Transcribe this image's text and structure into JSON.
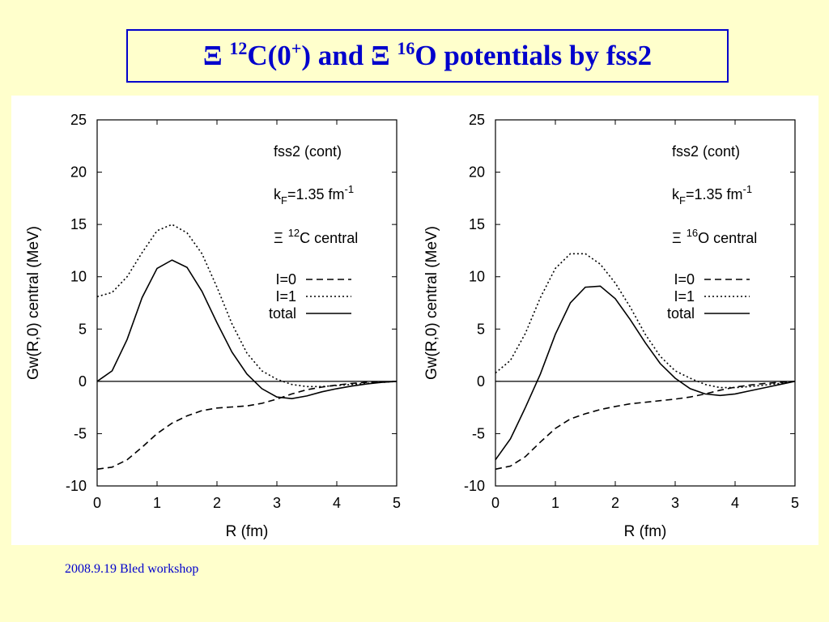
{
  "slide": {
    "title": {
      "xi1": "Ξ",
      "sup1": "12",
      "part1": "C(0",
      "sup2": "+",
      "part2": ") and Ξ",
      "sup3": "16",
      "part3": "O potentials by fss2"
    },
    "footer": "2008.9.19 Bled workshop"
  },
  "colors": {
    "background": "#ffffcc",
    "title": "#0000cc",
    "plot_background": "#ffffff",
    "ink": "#000000"
  },
  "chart_data": [
    {
      "type": "line",
      "xlabel": "R (fm)",
      "ylabel": "Gw(R,0) central (MeV)",
      "xlim": [
        0,
        5
      ],
      "ylim": [
        -10,
        25
      ],
      "xticks": [
        0,
        1,
        2,
        3,
        4,
        5
      ],
      "yticks": [
        -10,
        -5,
        0,
        5,
        10,
        15,
        20,
        25
      ],
      "grid": false,
      "annotations": {
        "model": "fss2 (cont)",
        "kf_k": "k",
        "kf_sub": "F",
        "kf_val": "=1.35 fm",
        "kf_sup": "-1",
        "sys_xi": "Ξ",
        "sys_sup": "12",
        "sys_rest": "C  central"
      },
      "legend_position": "right",
      "series": [
        {
          "name": "I=0",
          "style": "dashed",
          "x": [
            0,
            0.25,
            0.5,
            0.75,
            1.0,
            1.25,
            1.5,
            1.75,
            2.0,
            2.25,
            2.5,
            2.75,
            3.0,
            3.25,
            3.5,
            3.75,
            4.0,
            4.25,
            4.5,
            4.75,
            5.0
          ],
          "y": [
            -8.4,
            -8.2,
            -7.5,
            -6.3,
            -5.0,
            -4.0,
            -3.3,
            -2.8,
            -2.55,
            -2.45,
            -2.35,
            -2.1,
            -1.7,
            -1.2,
            -0.8,
            -0.55,
            -0.35,
            -0.2,
            -0.1,
            -0.05,
            0.0
          ]
        },
        {
          "name": "I=1",
          "style": "dotted",
          "x": [
            0,
            0.25,
            0.5,
            0.75,
            1.0,
            1.25,
            1.5,
            1.75,
            2.0,
            2.25,
            2.5,
            2.75,
            3.0,
            3.25,
            3.5,
            3.75,
            4.0,
            4.25,
            4.5,
            4.75,
            5.0
          ],
          "y": [
            8.1,
            8.5,
            10.0,
            12.3,
            14.4,
            15.0,
            14.2,
            12.2,
            9.0,
            5.5,
            2.7,
            1.0,
            0.2,
            -0.3,
            -0.5,
            -0.5,
            -0.4,
            -0.3,
            -0.2,
            -0.1,
            0.0
          ]
        },
        {
          "name": "total",
          "style": "solid",
          "x": [
            0,
            0.25,
            0.5,
            0.75,
            1.0,
            1.25,
            1.5,
            1.75,
            2.0,
            2.25,
            2.5,
            2.75,
            3.0,
            3.25,
            3.5,
            3.75,
            4.0,
            4.25,
            4.5,
            4.75,
            5.0
          ],
          "y": [
            0.0,
            1.0,
            4.0,
            8.0,
            10.8,
            11.6,
            10.9,
            8.6,
            5.6,
            2.8,
            0.7,
            -0.7,
            -1.5,
            -1.65,
            -1.4,
            -1.0,
            -0.7,
            -0.45,
            -0.25,
            -0.1,
            0.0
          ]
        }
      ]
    },
    {
      "type": "line",
      "xlabel": "R (fm)",
      "ylabel": "Gw(R,0) central (MeV)",
      "xlim": [
        0,
        5
      ],
      "ylim": [
        -10,
        25
      ],
      "xticks": [
        0,
        1,
        2,
        3,
        4,
        5
      ],
      "yticks": [
        -10,
        -5,
        0,
        5,
        10,
        15,
        20,
        25
      ],
      "grid": false,
      "annotations": {
        "model": "fss2 (cont)",
        "kf_k": "k",
        "kf_sub": "F",
        "kf_val": "=1.35 fm",
        "kf_sup": "-1",
        "sys_xi": "Ξ",
        "sys_sup": "16",
        "sys_rest": "O  central"
      },
      "legend_position": "right",
      "series": [
        {
          "name": "I=0",
          "style": "dashed",
          "x": [
            0,
            0.25,
            0.5,
            0.75,
            1.0,
            1.25,
            1.5,
            1.75,
            2.0,
            2.25,
            2.5,
            2.75,
            3.0,
            3.25,
            3.5,
            3.75,
            4.0,
            4.25,
            4.5,
            4.75,
            5.0
          ],
          "y": [
            -8.4,
            -8.1,
            -7.2,
            -5.8,
            -4.5,
            -3.6,
            -3.1,
            -2.7,
            -2.4,
            -2.15,
            -2.0,
            -1.85,
            -1.7,
            -1.5,
            -1.2,
            -0.85,
            -0.55,
            -0.35,
            -0.2,
            -0.1,
            0.0
          ]
        },
        {
          "name": "I=1",
          "style": "dotted",
          "x": [
            0,
            0.25,
            0.5,
            0.75,
            1.0,
            1.25,
            1.5,
            1.75,
            2.0,
            2.25,
            2.5,
            2.75,
            3.0,
            3.25,
            3.5,
            3.75,
            4.0,
            4.25,
            4.5,
            4.75,
            5.0
          ],
          "y": [
            0.8,
            2.0,
            4.6,
            8.0,
            10.8,
            12.2,
            12.2,
            11.2,
            9.4,
            7.1,
            4.5,
            2.4,
            1.0,
            0.3,
            -0.3,
            -0.6,
            -0.6,
            -0.5,
            -0.35,
            -0.2,
            0.0
          ]
        },
        {
          "name": "total",
          "style": "solid",
          "x": [
            0,
            0.25,
            0.5,
            0.75,
            1.0,
            1.25,
            1.5,
            1.75,
            2.0,
            2.25,
            2.5,
            2.75,
            3.0,
            3.25,
            3.5,
            3.75,
            4.0,
            4.25,
            4.5,
            4.75,
            5.0
          ],
          "y": [
            -7.5,
            -5.5,
            -2.5,
            0.7,
            4.5,
            7.5,
            9.0,
            9.1,
            7.9,
            5.9,
            3.7,
            1.7,
            0.3,
            -0.7,
            -1.2,
            -1.35,
            -1.2,
            -0.9,
            -0.6,
            -0.3,
            0.0
          ]
        }
      ]
    }
  ]
}
